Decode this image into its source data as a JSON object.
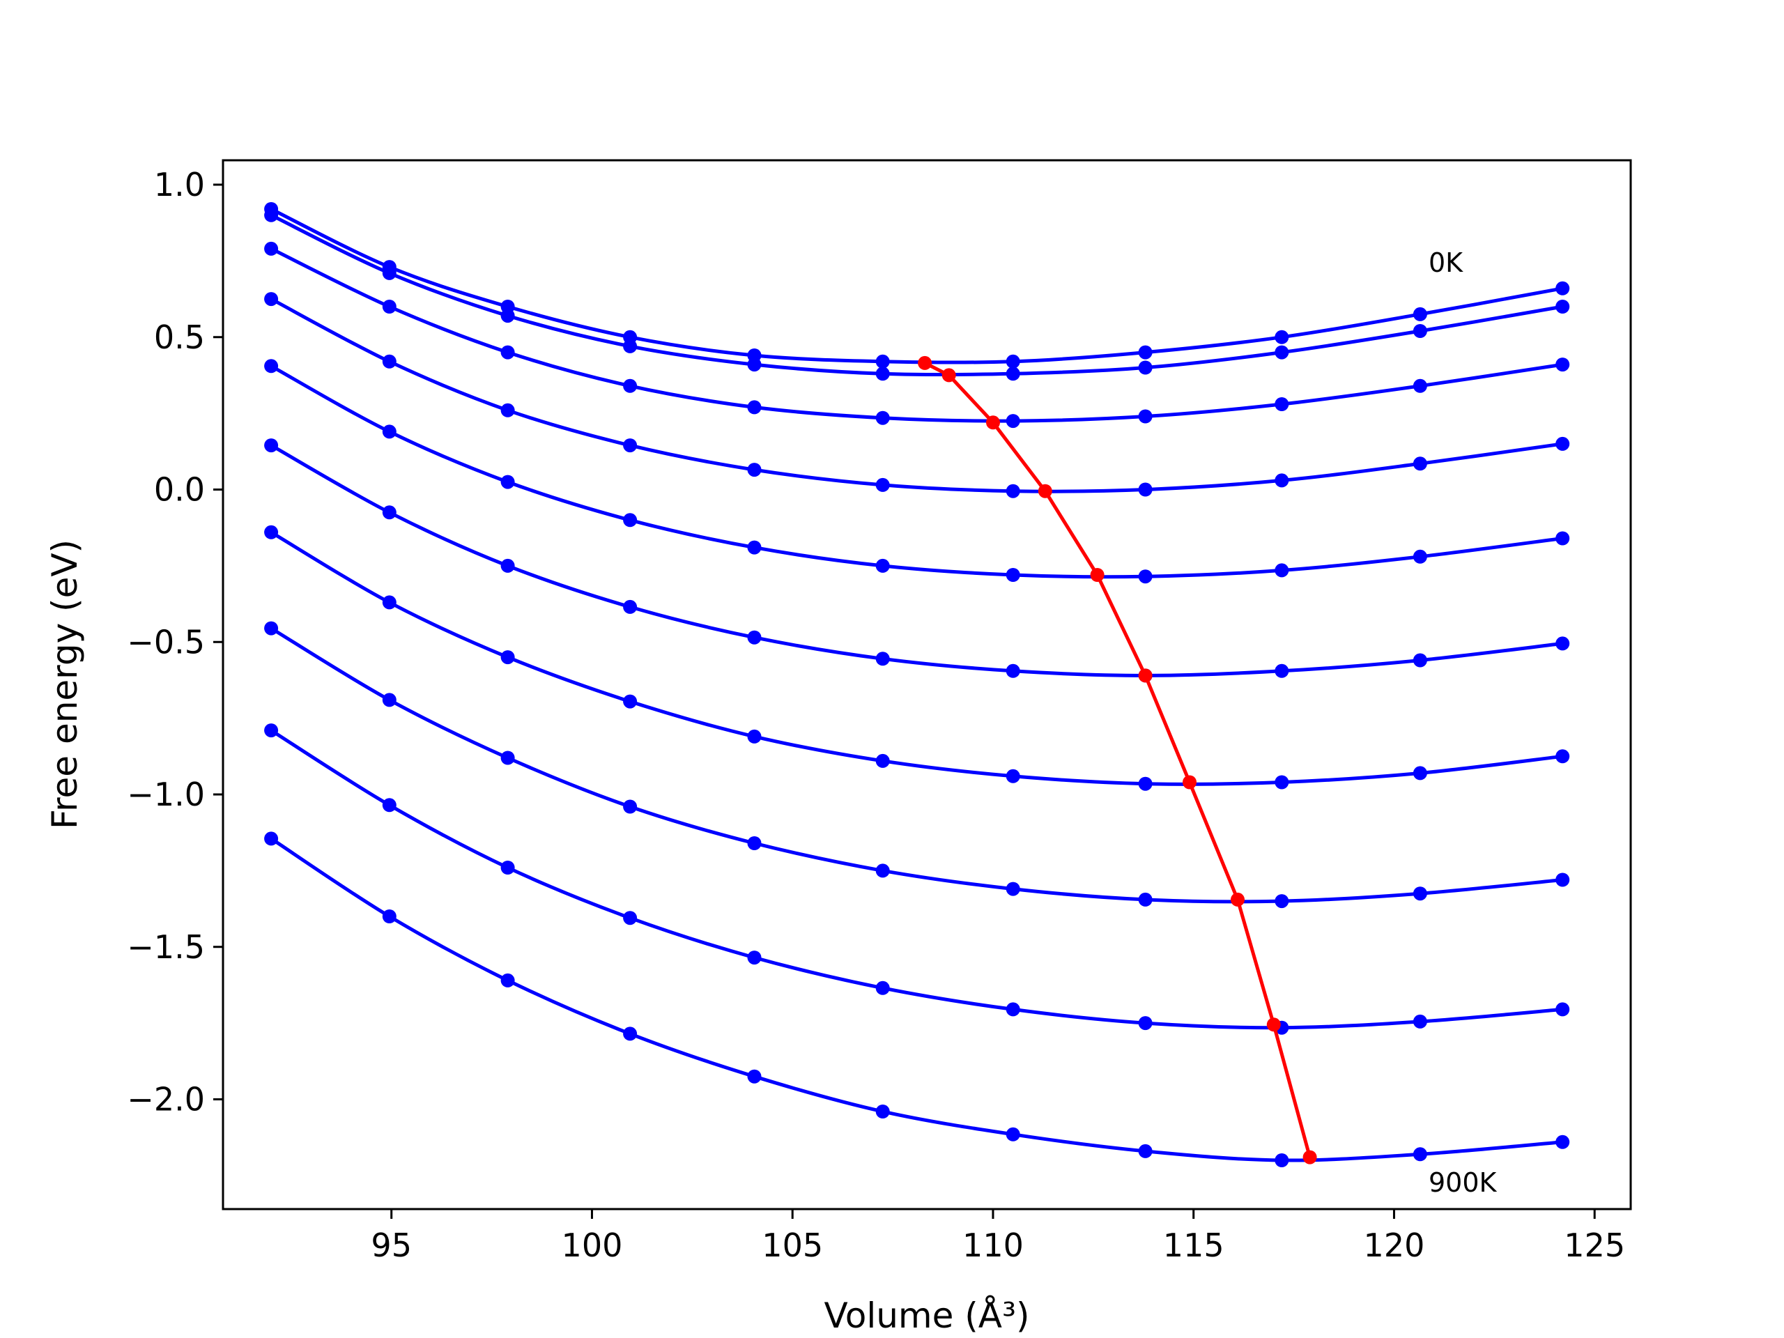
{
  "chart_data": {
    "type": "line",
    "xlabel": "Volume (Å³)",
    "ylabel": "Free energy (eV)",
    "xlim": [
      90.8,
      125.9
    ],
    "ylim": [
      -2.36,
      1.08
    ],
    "xticks": [
      95,
      100,
      105,
      110,
      115,
      120,
      125
    ],
    "xtick_labels": [
      "95",
      "100",
      "105",
      "110",
      "115",
      "120",
      "125"
    ],
    "yticks": [
      1.0,
      0.5,
      0.0,
      -0.5,
      -1.0,
      -1.5,
      -2.0
    ],
    "ytick_labels": [
      "1.0",
      "0.5",
      "0.0",
      "−0.5",
      "−1.0",
      "−1.5",
      "−2.0"
    ],
    "x": [
      92.0,
      94.95,
      97.9,
      100.95,
      104.05,
      107.25,
      110.5,
      113.8,
      117.2,
      120.65,
      124.2
    ],
    "series": [
      {
        "color": "#0000ff",
        "values": [
          0.92,
          0.73,
          0.6,
          0.5,
          0.44,
          0.42,
          0.42,
          0.45,
          0.5,
          0.575,
          0.66
        ]
      },
      {
        "color": "#0000ff",
        "values": [
          0.9,
          0.71,
          0.57,
          0.47,
          0.41,
          0.38,
          0.38,
          0.4,
          0.45,
          0.52,
          0.6
        ]
      },
      {
        "color": "#0000ff",
        "values": [
          0.79,
          0.6,
          0.45,
          0.34,
          0.27,
          0.235,
          0.225,
          0.24,
          0.28,
          0.34,
          0.41
        ]
      },
      {
        "color": "#0000ff",
        "values": [
          0.625,
          0.42,
          0.26,
          0.145,
          0.065,
          0.015,
          -0.005,
          0.0,
          0.03,
          0.085,
          0.15
        ]
      },
      {
        "color": "#0000ff",
        "values": [
          0.405,
          0.19,
          0.025,
          -0.1,
          -0.19,
          -0.25,
          -0.28,
          -0.285,
          -0.265,
          -0.22,
          -0.16
        ]
      },
      {
        "color": "#0000ff",
        "values": [
          0.145,
          -0.075,
          -0.25,
          -0.385,
          -0.485,
          -0.555,
          -0.595,
          -0.61,
          -0.595,
          -0.56,
          -0.505
        ]
      },
      {
        "color": "#0000ff",
        "values": [
          -0.14,
          -0.37,
          -0.55,
          -0.695,
          -0.81,
          -0.89,
          -0.94,
          -0.965,
          -0.96,
          -0.93,
          -0.875
        ]
      },
      {
        "color": "#0000ff",
        "values": [
          -0.455,
          -0.69,
          -0.88,
          -1.04,
          -1.16,
          -1.25,
          -1.31,
          -1.345,
          -1.35,
          -1.325,
          -1.28
        ]
      },
      {
        "color": "#0000ff",
        "values": [
          -0.79,
          -1.035,
          -1.24,
          -1.405,
          -1.535,
          -1.635,
          -1.705,
          -1.75,
          -1.765,
          -1.745,
          -1.705
        ]
      },
      {
        "color": "#0000ff",
        "values": [
          -1.145,
          -1.4,
          -1.61,
          -1.785,
          -1.925,
          -2.04,
          -2.115,
          -2.17,
          -2.2,
          -2.18,
          -2.14
        ]
      }
    ],
    "minimum_path": {
      "color": "#ff0000",
      "x": [
        108.3,
        108.9,
        110.0,
        111.3,
        112.6,
        113.8,
        114.9,
        116.1,
        117.0,
        117.9
      ],
      "y": [
        0.415,
        0.375,
        0.22,
        -0.005,
        -0.28,
        -0.61,
        -0.96,
        -1.345,
        -1.755,
        -2.19
      ]
    },
    "annotations": [
      "0K",
      "900K"
    ]
  }
}
